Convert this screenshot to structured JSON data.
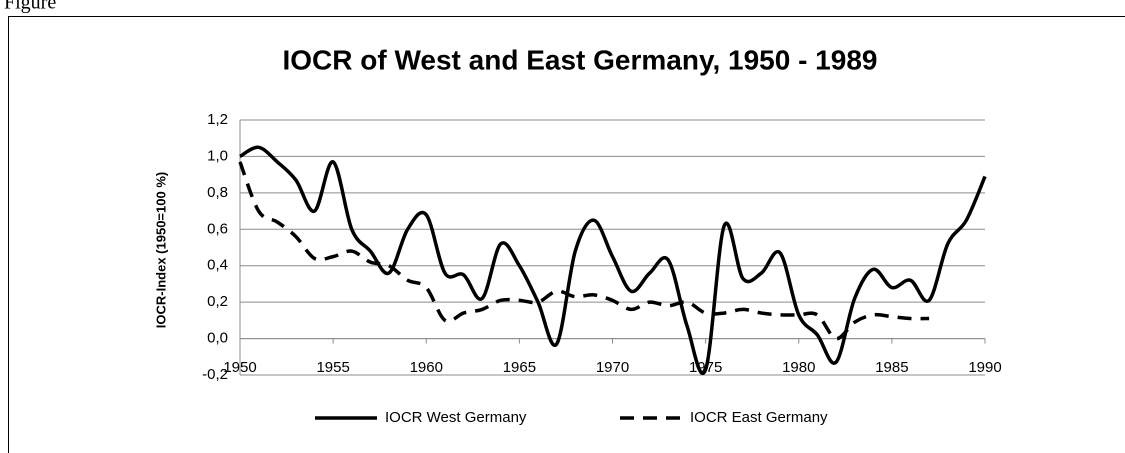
{
  "caption": "Figure",
  "chart_data": {
    "type": "line",
    "title": "IOCR of West and East Germany, 1950 - 1989",
    "y_label": "IOCR-Index (1950=100 %)",
    "x": [
      1950,
      1951,
      1952,
      1953,
      1954,
      1955,
      1956,
      1957,
      1958,
      1959,
      1960,
      1961,
      1962,
      1963,
      1964,
      1965,
      1966,
      1967,
      1968,
      1969,
      1970,
      1971,
      1972,
      1973,
      1974,
      1975,
      1976,
      1977,
      1978,
      1979,
      1980,
      1981,
      1982,
      1983,
      1984,
      1985,
      1986,
      1987,
      1988,
      1989,
      1990
    ],
    "series": [
      {
        "name": "IOCR West Germany",
        "color": "#000000",
        "dash": "solid",
        "values": [
          1.0,
          1.05,
          0.97,
          0.87,
          0.7,
          0.97,
          0.6,
          0.48,
          0.36,
          0.6,
          0.68,
          0.36,
          0.35,
          0.22,
          0.52,
          0.4,
          0.2,
          -0.03,
          0.48,
          0.65,
          0.45,
          0.26,
          0.36,
          0.43,
          0.07,
          -0.17,
          0.62,
          0.33,
          0.36,
          0.47,
          0.13,
          0.02,
          -0.13,
          0.22,
          0.38,
          0.28,
          0.32,
          0.21,
          0.52,
          0.65,
          0.89
        ]
      },
      {
        "name": "IOCR East Germany",
        "color": "#000000",
        "dash": "dashed",
        "values": [
          0.97,
          0.7,
          0.64,
          0.56,
          0.44,
          0.45,
          0.48,
          0.42,
          0.4,
          0.32,
          0.28,
          0.1,
          0.14,
          0.16,
          0.21,
          0.21,
          0.2,
          0.26,
          0.23,
          0.24,
          0.21,
          0.16,
          0.2,
          0.18,
          0.2,
          0.14,
          0.14,
          0.16,
          0.14,
          0.13,
          0.13,
          0.13,
          0.0,
          0.09,
          0.13,
          0.12,
          0.11,
          0.11,
          null,
          null,
          null
        ]
      }
    ],
    "xlim": [
      1950,
      1990
    ],
    "xticks": [
      1950,
      1955,
      1960,
      1965,
      1970,
      1975,
      1980,
      1985,
      1990
    ],
    "ylim": [
      -0.2,
      1.2
    ],
    "yticks": [
      {
        "value": -0.2,
        "label": "-0,2"
      },
      {
        "value": 0,
        "label": "0,0"
      },
      {
        "value": 0.2,
        "label": "0,2"
      },
      {
        "value": 0.4,
        "label": "0,4"
      },
      {
        "value": 0.6,
        "label": "0,6"
      },
      {
        "value": 0.8,
        "label": "0,8"
      },
      {
        "value": 1.0,
        "label": "1,0"
      },
      {
        "value": 1.2,
        "label": "1,2"
      }
    ],
    "grid": true,
    "legend": "bottom"
  }
}
